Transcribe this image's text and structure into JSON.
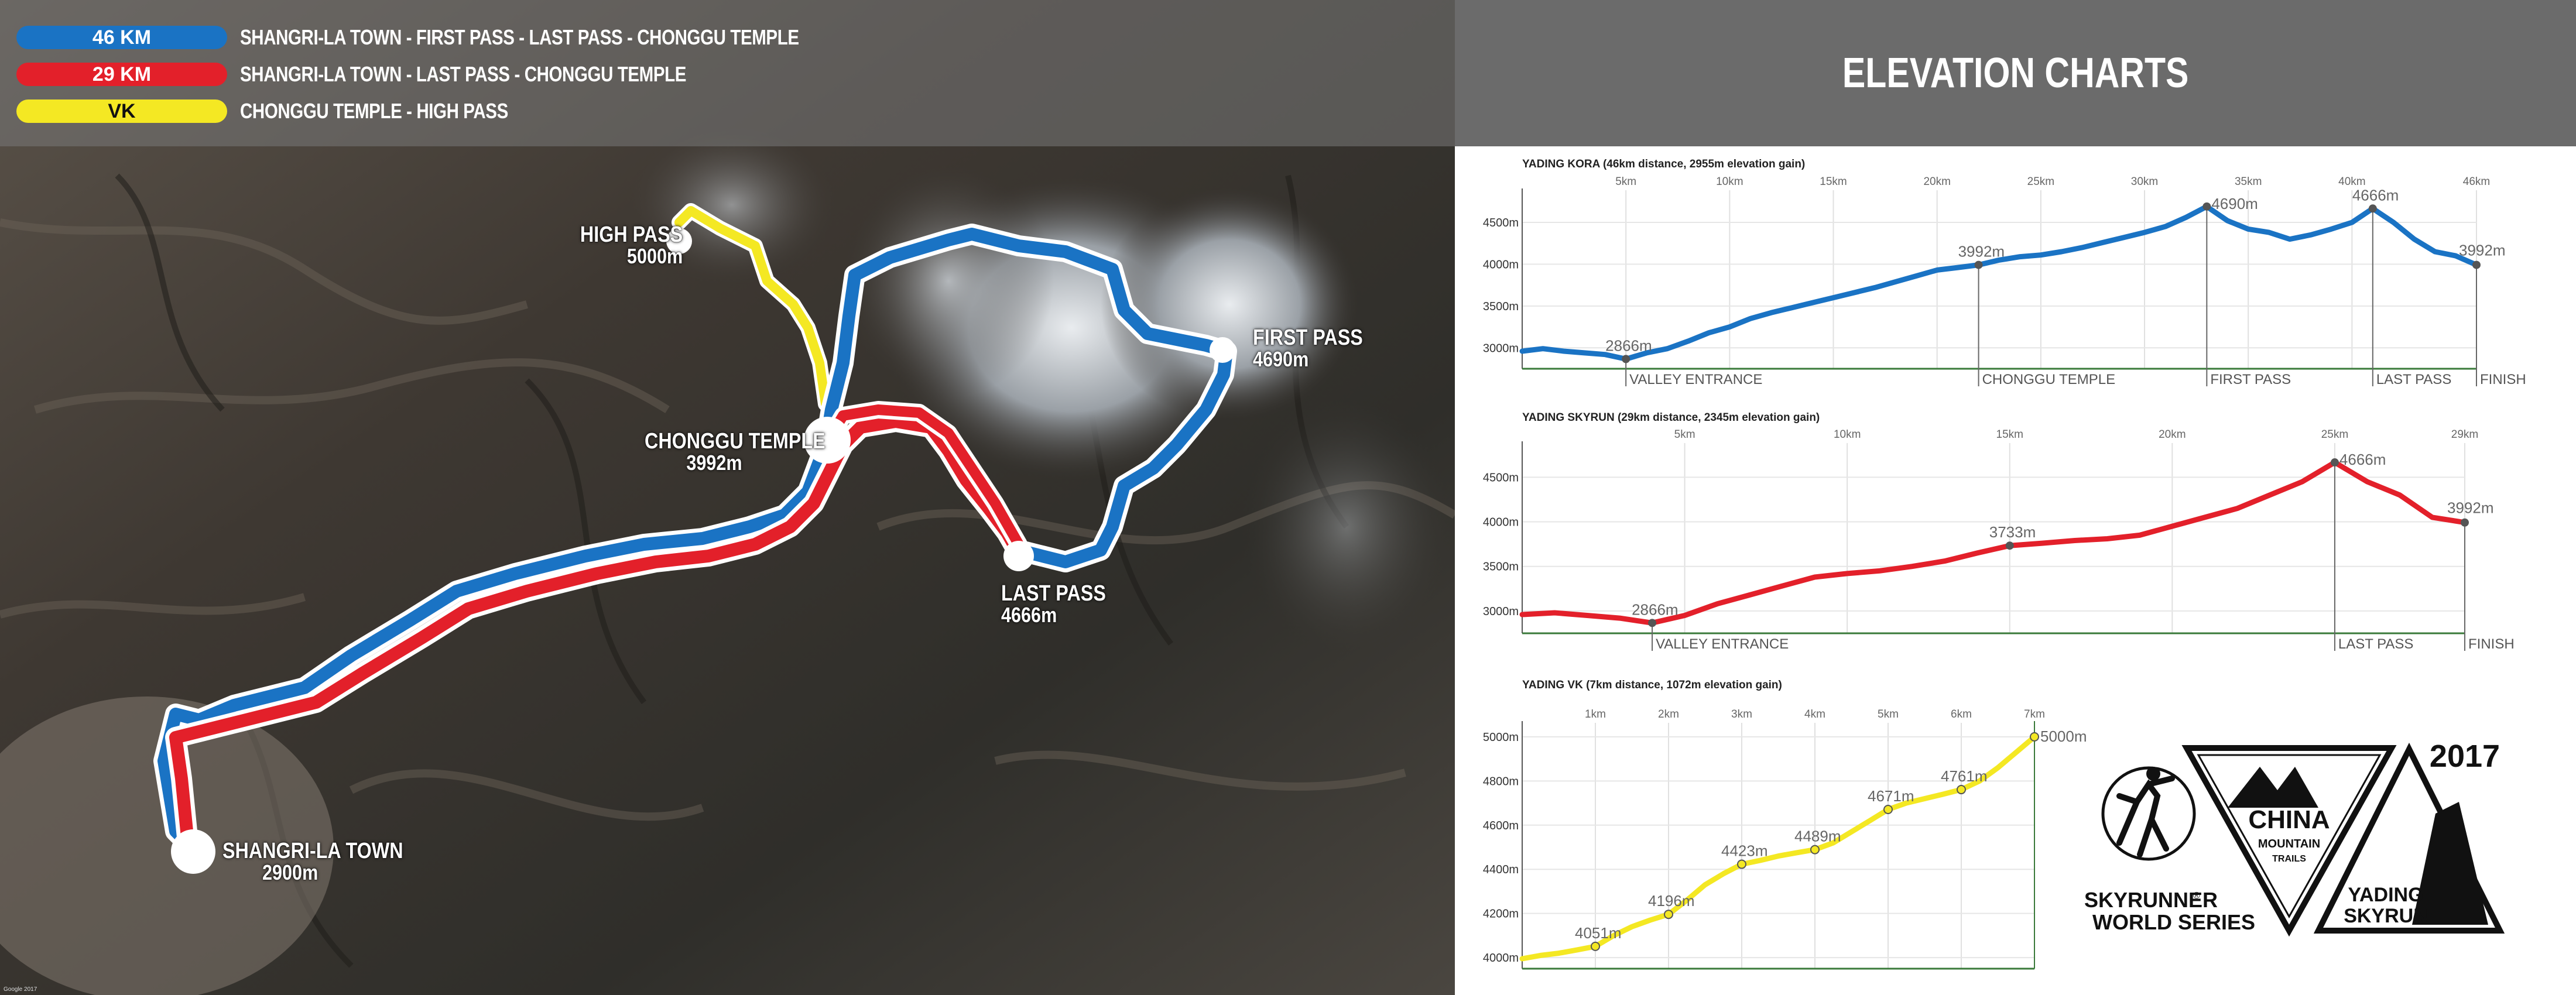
{
  "legend": [
    {
      "label": "46 KM",
      "text": "SHANGRI-LA TOWN - FIRST PASS - LAST PASS - CHONGGU TEMPLE",
      "color": "#1a73c4",
      "text_color": "#ffffff"
    },
    {
      "label": "29 KM",
      "text": "SHANGRI-LA TOWN - LAST PASS - CHONGGU TEMPLE",
      "color": "#e3202a",
      "text_color": "#ffffff"
    },
    {
      "label": "VK",
      "text": "CHONGGU TEMPLE - HIGH PASS",
      "color": "#f4e823",
      "text_color": "#111111"
    }
  ],
  "map_labels": {
    "high_pass": {
      "name": "HIGH PASS",
      "elev": "5000m"
    },
    "first_pass": {
      "name": "FIRST PASS",
      "elev": "4690m"
    },
    "chonggu": {
      "name": "CHONGGU TEMPLE",
      "elev": "3992m"
    },
    "last_pass": {
      "name": "LAST PASS",
      "elev": "4666m"
    },
    "town": {
      "name": "SHANGRI-LA TOWN",
      "elev": "2900m"
    }
  },
  "map_credit": "Google 2017",
  "elevation_header": "ELEVATION CHARTS",
  "chart_data": [
    {
      "type": "line",
      "title": "YADING KORA (46km distance, 2955m elevation gain)",
      "color": "#1a73c4",
      "x_unit": "km",
      "xlim": [
        0,
        46
      ],
      "ylim": [
        2750,
        4850
      ],
      "x_ticks": [
        5,
        10,
        15,
        20,
        25,
        30,
        35,
        40,
        46
      ],
      "x_tick_labels": [
        "5km",
        "10km",
        "15km",
        "20km",
        "25km",
        "30km",
        "35km",
        "40km",
        "46km"
      ],
      "y_ticks": [
        3000,
        3500,
        4000,
        4500
      ],
      "y_tick_labels": [
        "3000m",
        "3500m",
        "4000m",
        "4500m"
      ],
      "x": [
        0,
        1,
        2,
        3,
        4,
        5,
        6,
        7,
        8,
        9,
        10,
        11,
        12,
        13,
        14,
        15,
        16,
        17,
        18,
        19,
        20,
        21,
        22,
        23,
        24,
        25,
        26,
        27,
        28,
        29,
        30,
        31,
        32,
        33,
        34,
        35,
        36,
        37,
        38,
        39,
        40,
        41,
        42,
        43,
        44,
        45,
        46
      ],
      "y": [
        2960,
        2990,
        2960,
        2940,
        2920,
        2866,
        2940,
        2990,
        3080,
        3180,
        3250,
        3350,
        3420,
        3480,
        3540,
        3600,
        3660,
        3720,
        3790,
        3860,
        3930,
        3960,
        3992,
        4050,
        4090,
        4110,
        4150,
        4200,
        4260,
        4320,
        4380,
        4450,
        4560,
        4690,
        4520,
        4420,
        4380,
        4300,
        4350,
        4420,
        4500,
        4666,
        4500,
        4300,
        4150,
        4100,
        3992
      ],
      "annotations": [
        {
          "x": 5,
          "y": 2866,
          "label": "2866m"
        },
        {
          "x": 22,
          "y": 3992,
          "label": "3992m"
        },
        {
          "x": 33,
          "y": 4690,
          "label": "4690m"
        },
        {
          "x": 41,
          "y": 4666,
          "label": "4666m"
        },
        {
          "x": 46,
          "y": 3992,
          "label": "3992m"
        }
      ],
      "checkpoints": [
        {
          "x": 5,
          "label": "VALLEY ENTRANCE"
        },
        {
          "x": 22,
          "label": "CHONGGU TEMPLE"
        },
        {
          "x": 33,
          "label": "FIRST PASS"
        },
        {
          "x": 41,
          "label": "LAST PASS"
        },
        {
          "x": 46,
          "label": "FINISH"
        }
      ]
    },
    {
      "type": "line",
      "title": "YADING SKYRUN (29km distance, 2345m elevation gain)",
      "color": "#e3202a",
      "x_unit": "km",
      "xlim": [
        0,
        29
      ],
      "ylim": [
        2750,
        4850
      ],
      "x_ticks": [
        5,
        10,
        15,
        20,
        25,
        29
      ],
      "x_tick_labels": [
        "5km",
        "10km",
        "15km",
        "20km",
        "25km",
        "29km"
      ],
      "y_ticks": [
        3000,
        3500,
        4000,
        4500
      ],
      "y_tick_labels": [
        "3000m",
        "3500m",
        "4000m",
        "4500m"
      ],
      "x": [
        0,
        1,
        2,
        3,
        4,
        5,
        6,
        7,
        8,
        9,
        10,
        11,
        12,
        13,
        14,
        15,
        16,
        17,
        18,
        19,
        20,
        21,
        22,
        23,
        24,
        25,
        26,
        27,
        28,
        29
      ],
      "y": [
        2960,
        2980,
        2950,
        2920,
        2866,
        2950,
        3080,
        3180,
        3280,
        3380,
        3420,
        3450,
        3500,
        3560,
        3650,
        3733,
        3760,
        3790,
        3810,
        3850,
        3950,
        4050,
        4150,
        4300,
        4450,
        4666,
        4450,
        4300,
        4050,
        3992
      ],
      "annotations": [
        {
          "x": 4,
          "y": 2866,
          "label": "2866m"
        },
        {
          "x": 15,
          "y": 3733,
          "label": "3733m"
        },
        {
          "x": 25,
          "y": 4666,
          "label": "4666m"
        },
        {
          "x": 29,
          "y": 3992,
          "label": "3992m"
        }
      ],
      "checkpoints": [
        {
          "x": 4,
          "label": "VALLEY ENTRANCE"
        },
        {
          "x": 25,
          "label": "LAST PASS"
        },
        {
          "x": 29,
          "label": "FINISH"
        }
      ]
    },
    {
      "type": "line",
      "title": "YADING VK (7km distance, 1072m elevation gain)",
      "color": "#f4e823",
      "x_unit": "km",
      "xlim": [
        0,
        7
      ],
      "ylim": [
        3950,
        5050
      ],
      "x_ticks": [
        1,
        2,
        3,
        4,
        5,
        6,
        7
      ],
      "x_tick_labels": [
        "1km",
        "2km",
        "3km",
        "4km",
        "5km",
        "6km",
        "7km"
      ],
      "y_ticks": [
        4000,
        4200,
        4400,
        4600,
        4800,
        5000
      ],
      "y_tick_labels": [
        "4000m",
        "4200m",
        "4400m",
        "4600m",
        "4800m",
        "5000m"
      ],
      "x": [
        0,
        0.25,
        0.5,
        0.75,
        1,
        1.25,
        1.5,
        1.75,
        2,
        2.25,
        2.5,
        2.75,
        3,
        3.25,
        3.5,
        3.75,
        4,
        4.25,
        4.5,
        4.75,
        5,
        5.25,
        5.5,
        5.75,
        6,
        6.25,
        6.5,
        6.75,
        7
      ],
      "y": [
        3995,
        4010,
        4020,
        4035,
        4051,
        4100,
        4140,
        4170,
        4196,
        4260,
        4330,
        4380,
        4423,
        4440,
        4460,
        4475,
        4489,
        4520,
        4570,
        4620,
        4671,
        4700,
        4720,
        4740,
        4761,
        4800,
        4860,
        4930,
        5000
      ],
      "annotations": [
        {
          "x": 1,
          "y": 4051,
          "label": "4051m"
        },
        {
          "x": 2,
          "y": 4196,
          "label": "4196m"
        },
        {
          "x": 3,
          "y": 4423,
          "label": "4423m"
        },
        {
          "x": 4,
          "y": 4489,
          "label": "4489m"
        },
        {
          "x": 5,
          "y": 4671,
          "label": "4671m"
        },
        {
          "x": 6,
          "y": 4761,
          "label": "4761m"
        },
        {
          "x": 7,
          "y": 5000,
          "label": "5000m"
        }
      ],
      "checkpoints": []
    }
  ],
  "logos": {
    "skyrunner_line1": "SKYRUNNER",
    "skyrunner_reg": "®",
    "skyrunner_line2": "WORLD SERIES",
    "china_line1": "CHINA",
    "china_line2": "MOUNTAIN",
    "china_line3": "TRAILS",
    "year": "2017",
    "yading_line1": "YADING",
    "yading_line2": "SKYRUN"
  }
}
